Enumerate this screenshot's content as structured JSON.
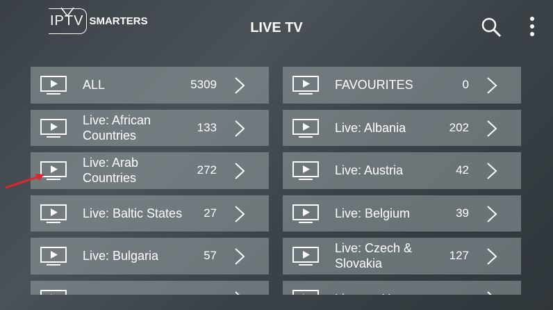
{
  "header": {
    "logo_iptv": "IPTV",
    "logo_smarters": "SMARTERS",
    "title": "LIVE TV",
    "icons": [
      "search-icon",
      "more-vert-icon"
    ]
  },
  "accent": "#e0262b",
  "categories": {
    "left": [
      {
        "label": "ALL",
        "count": "5309"
      },
      {
        "label": "Live: African Countries",
        "count": "133"
      },
      {
        "label": "Live: Arab Countries",
        "count": "272"
      },
      {
        "label": "Live: Baltic States",
        "count": "27"
      },
      {
        "label": "Live: Bulgaria",
        "count": "57"
      },
      {
        "label": "",
        "count": ""
      }
    ],
    "right": [
      {
        "label": "FAVOURITES",
        "count": "0"
      },
      {
        "label": "Live: Albania",
        "count": "202"
      },
      {
        "label": "Live: Austria",
        "count": "42"
      },
      {
        "label": "Live: Belgium",
        "count": "39"
      },
      {
        "label": "Live: Czech & Slovakia",
        "count": "127"
      },
      {
        "label": "Live: ex-Yu",
        "count": ""
      }
    ]
  }
}
